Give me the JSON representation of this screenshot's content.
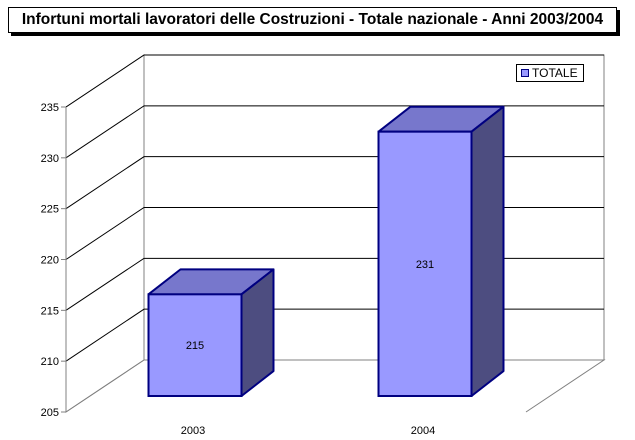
{
  "chart_data": {
    "type": "bar",
    "title": "Infortuni mortali lavoratori delle Costruzioni - Totale nazionale - Anni 2003/2004",
    "categories": [
      "2003",
      "2004"
    ],
    "series": [
      {
        "name": "TOTALE",
        "values": [
          215,
          231
        ],
        "color": "#9999ff"
      }
    ],
    "data_labels": [
      "215",
      "231"
    ],
    "yticks": [
      "205",
      "210",
      "215",
      "220",
      "225",
      "230",
      "235"
    ],
    "ylim": [
      205,
      235
    ],
    "grid": true,
    "legend": "top-right",
    "style": "3d"
  }
}
